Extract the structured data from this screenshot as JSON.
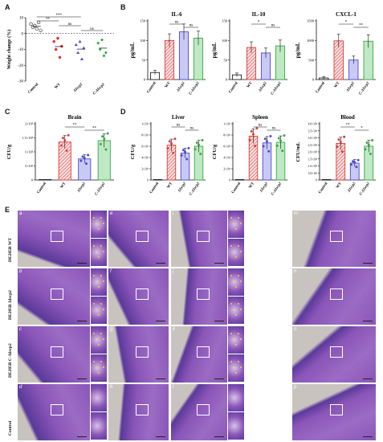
{
  "labels": {
    "A": "A",
    "B": "B",
    "C": "C",
    "D": "D",
    "E": "E"
  },
  "panelA": {
    "ylabel": "Weight change (%)",
    "yticks": [
      "10",
      "0",
      "-10",
      "-20",
      "-30"
    ],
    "xticks": [
      "Control",
      "WT",
      "ΔIscp2",
      "C-ΔIscp2"
    ],
    "sig": [
      "**",
      "***",
      "ns",
      "ns"
    ]
  },
  "panelB": {
    "charts": [
      {
        "title": "IL-6",
        "ylabel": "pg/mL",
        "yticks": [
          "150",
          "100",
          "50",
          "0"
        ],
        "sig": [
          "ns",
          "ns"
        ]
      },
      {
        "title": "IL-10",
        "ylabel": "pg/mL",
        "yticks": [
          "150",
          "100",
          "50",
          "0"
        ],
        "sig": [
          "*",
          "ns"
        ]
      },
      {
        "title": "CXCL-1",
        "ylabel": "pg/mL",
        "yticks": [
          "1500",
          "1000",
          "500",
          "0"
        ],
        "sig": [
          "*",
          "**"
        ]
      }
    ],
    "xticks": [
      "Control",
      "WT",
      "ΔIscp2",
      "C-ΔIscp2"
    ]
  },
  "panelC": {
    "title": "Brain",
    "ylabel": "CFU/g",
    "yticks": [
      "2×10⁴",
      "1.5×10⁴",
      "1×10⁴",
      "5×10³",
      "0"
    ],
    "sig": [
      "**",
      "**"
    ]
  },
  "panelD": {
    "charts": [
      {
        "title": "Liver",
        "ylabel": "CFU/g",
        "yticks": [
          "1×10⁶",
          "8×10⁵",
          "6×10⁵",
          "4×10⁵",
          "2×10⁵",
          "0"
        ],
        "sig": [
          "ns",
          "ns"
        ]
      },
      {
        "title": "Spleen",
        "ylabel": "CFU/g",
        "yticks": [
          "1×10⁶",
          "8×10⁵",
          "6×10⁵",
          "4×10⁵",
          "2×10⁵",
          "0"
        ],
        "sig": [
          "ns",
          "ns"
        ]
      },
      {
        "title": "Blood",
        "ylabel": "CFU/mL",
        "yticks": [
          "4.0×10⁴",
          "3.5×10⁴",
          "3.0×10⁴",
          "2.5×10⁴",
          "2.0×10⁴",
          "1.5×10⁴",
          "1.0×10⁴",
          "5.0×10³",
          "0"
        ],
        "sig": [
          "**",
          "*"
        ]
      }
    ]
  },
  "chart_data": [
    {
      "type": "scatter",
      "panel": "A",
      "categories": [
        "Control",
        "WT",
        "ΔIscp2",
        "C-ΔIscp2"
      ],
      "ylabel": "Weight change (%)",
      "ylim": [
        -30,
        10
      ],
      "series": [
        {
          "values": [
            [
              6,
              4,
              5,
              3,
              7,
              2
            ],
            [
              -5,
              -10,
              -3,
              -15,
              -8
            ],
            [
              -7,
              -12,
              -5,
              -16,
              -9
            ],
            [
              -6,
              -10,
              -4,
              -14,
              -12
            ]
          ]
        }
      ]
    },
    {
      "type": "bar",
      "panel": "B",
      "title": "IL-6",
      "categories": [
        "Control",
        "WT",
        "ΔIscp2",
        "C-ΔIscp2"
      ],
      "ylabel": "pg/mL",
      "ylim": [
        0,
        150
      ],
      "values": [
        18,
        100,
        122,
        106
      ]
    },
    {
      "type": "bar",
      "panel": "B",
      "title": "IL-10",
      "categories": [
        "Control",
        "WT",
        "ΔIscp2",
        "C-ΔIscp2"
      ],
      "ylabel": "pg/mL",
      "ylim": [
        0,
        150
      ],
      "values": [
        12,
        82,
        68,
        86
      ]
    },
    {
      "type": "bar",
      "panel": "B",
      "title": "CXCL-1",
      "categories": [
        "Control",
        "WT",
        "ΔIscp2",
        "C-ΔIscp2"
      ],
      "ylabel": "pg/mL",
      "ylim": [
        0,
        1500
      ],
      "values": [
        40,
        990,
        500,
        980
      ]
    },
    {
      "type": "bar",
      "panel": "C",
      "title": "Brain",
      "categories": [
        "Control",
        "WT",
        "ΔIscp2",
        "C-ΔIscp2"
      ],
      "ylabel": "CFU/g",
      "ylim": [
        0,
        20000
      ],
      "values": [
        0,
        13500,
        7500,
        14000
      ]
    },
    {
      "type": "bar",
      "panel": "D",
      "title": "Liver",
      "categories": [
        "Control",
        "WT",
        "ΔIscp2",
        "C-ΔIscp2"
      ],
      "ylabel": "CFU/g",
      "ylim": [
        0,
        1000000
      ],
      "values": [
        0,
        620000,
        480000,
        600000
      ]
    },
    {
      "type": "bar",
      "panel": "D",
      "title": "Spleen",
      "categories": [
        "Control",
        "WT",
        "ΔIscp2",
        "C-ΔIscp2"
      ],
      "ylabel": "CFU/g",
      "ylim": [
        0,
        1000000
      ],
      "values": [
        0,
        780000,
        660000,
        670000
      ]
    },
    {
      "type": "bar",
      "panel": "D",
      "title": "Blood",
      "categories": [
        "Control",
        "WT",
        "ΔIscp2",
        "C-ΔIscp2"
      ],
      "ylabel": "CFU/mL",
      "ylim": [
        0,
        40000
      ],
      "values": [
        0,
        26000,
        12000,
        24000
      ]
    }
  ],
  "panelE": {
    "rows": [
      "DE205B WT",
      "DE205B ΔIscp2",
      "DE205B C-ΔIscp2",
      "Control"
    ],
    "tiles": [
      [
        "a",
        "e",
        "i",
        "m"
      ],
      [
        "b",
        "f",
        "j",
        "n"
      ],
      [
        "c",
        "g",
        "k",
        "o"
      ],
      [
        "d",
        "h",
        "l",
        "p"
      ]
    ]
  },
  "colors": {
    "control": "#222222",
    "wt": "#e03a3a",
    "mut": "#4a4ad8",
    "comp": "#39a845",
    "he_bg": "#8a55b8",
    "he_dark": "#5a3a9a",
    "he_light": "#c7b2d8"
  }
}
